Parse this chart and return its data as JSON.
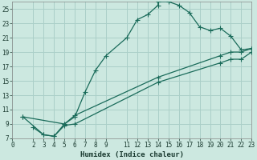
{
  "xlabel": "Humidex (Indice chaleur)",
  "bg_color": "#cce8e0",
  "grid_color": "#aacfc8",
  "line_color": "#1a6b5a",
  "xlim": [
    0,
    23
  ],
  "ylim": [
    7,
    26
  ],
  "xticks": [
    0,
    2,
    3,
    4,
    5,
    6,
    7,
    8,
    9,
    11,
    12,
    13,
    14,
    15,
    16,
    17,
    18,
    19,
    20,
    21,
    22,
    23
  ],
  "yticks": [
    7,
    9,
    11,
    13,
    15,
    17,
    19,
    21,
    23,
    25
  ],
  "curve1_x": [
    2,
    3,
    4,
    5,
    6,
    7,
    8,
    9,
    11,
    12,
    13,
    14,
    14,
    15,
    16,
    17,
    18,
    19,
    20,
    21,
    22,
    23
  ],
  "curve1_y": [
    8.5,
    7.5,
    7.3,
    9.0,
    10.0,
    13.5,
    16.5,
    18.5,
    21.0,
    23.5,
    24.2,
    25.5,
    26.0,
    26.0,
    25.5,
    24.5,
    22.5,
    22.0,
    22.3,
    21.2,
    19.3,
    19.5
  ],
  "curve2_x": [
    1,
    5,
    6,
    14,
    20,
    21,
    22,
    23
  ],
  "curve2_y": [
    10.0,
    9.0,
    10.2,
    15.5,
    18.5,
    19.0,
    19.0,
    19.5
  ],
  "curve3_x": [
    1,
    3,
    4,
    5,
    6,
    14,
    20,
    21,
    22,
    23
  ],
  "curve3_y": [
    10.0,
    7.5,
    7.3,
    8.8,
    9.0,
    14.8,
    17.5,
    18.0,
    18.0,
    19.0
  ]
}
